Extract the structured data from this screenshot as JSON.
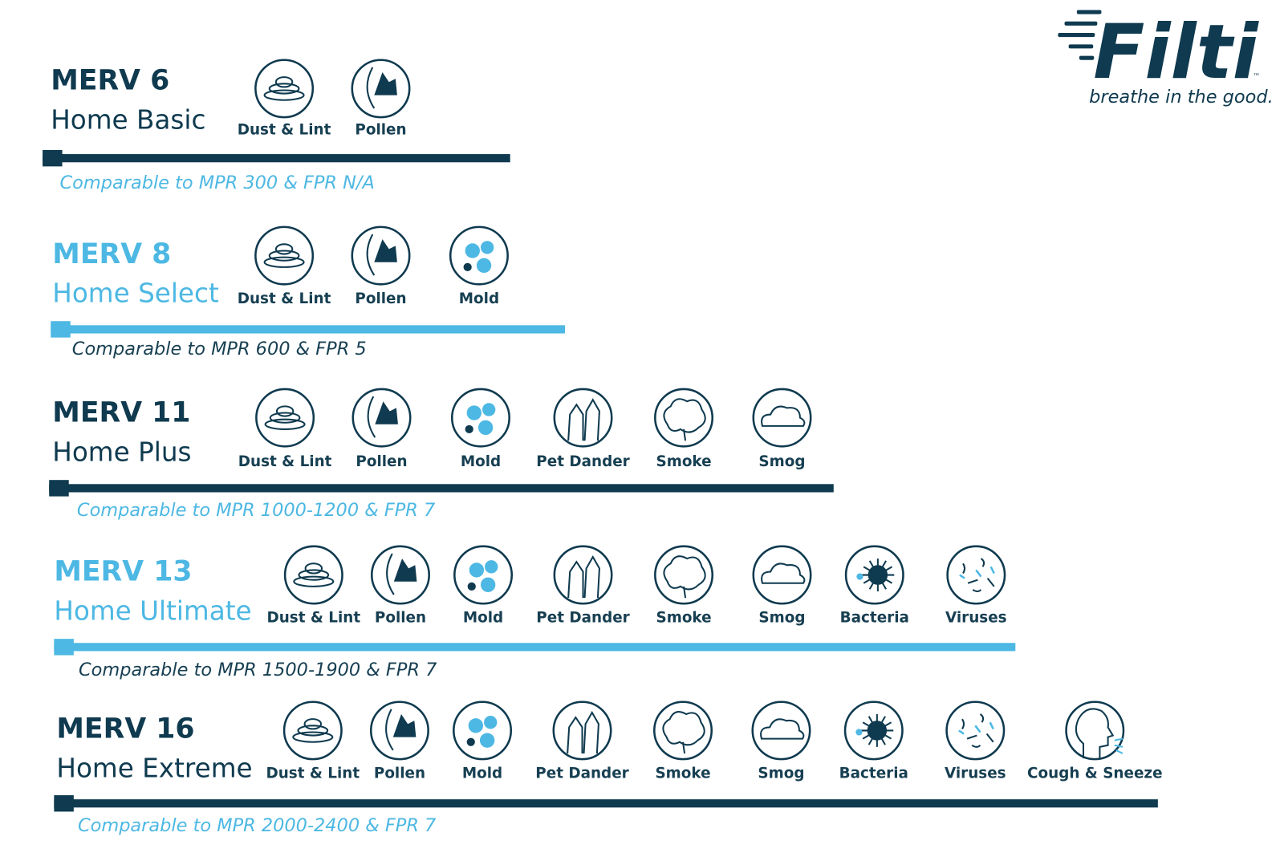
{
  "logo": {
    "name": "Filti",
    "trademark": "™",
    "tagline": "breathe in the good."
  },
  "tiers": [
    {
      "merv": "MERV 6",
      "name": "Home Basic",
      "icons": [
        "Dust & Lint",
        "Pollen"
      ],
      "comparison": "Comparable to MPR 300 & FPR N/A"
    },
    {
      "merv": "MERV 8",
      "name": "Home Select",
      "icons": [
        "Dust & Lint",
        "Pollen",
        "Mold"
      ],
      "comparison": "Comparable to MPR 600 & FPR 5"
    },
    {
      "merv": "MERV 11",
      "name": "Home Plus",
      "icons": [
        "Dust & Lint",
        "Pollen",
        "Mold",
        "Pet Dander",
        "Smoke",
        "Smog"
      ],
      "comparison": "Comparable to MPR 1000-1200 & FPR 7"
    },
    {
      "merv": "MERV 13",
      "name": "Home Ultimate",
      "icons": [
        "Dust & Lint",
        "Pollen",
        "Mold",
        "Pet Dander",
        "Smoke",
        "Smog",
        "Bacteria",
        "Viruses"
      ],
      "comparison": "Comparable to MPR 1500-1900 & FPR 7"
    },
    {
      "merv": "MERV 16",
      "name": "Home Extreme",
      "icons": [
        "Dust & Lint",
        "Pollen",
        "Mold",
        "Pet Dander",
        "Smoke",
        "Smog",
        "Bacteria",
        "Viruses",
        "Cough & Sneeze"
      ],
      "comparison": "Comparable to MPR 2000-2400 & FPR 7"
    }
  ]
}
